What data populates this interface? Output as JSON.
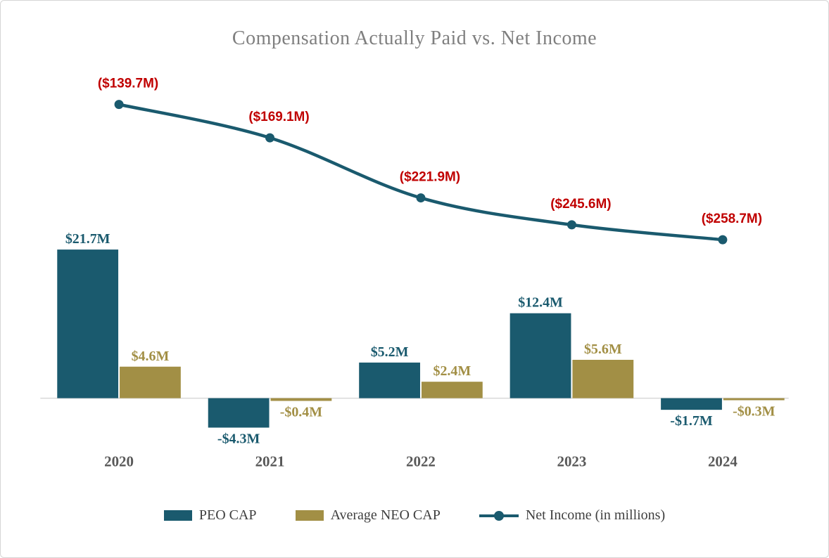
{
  "chart_data": {
    "type": "combo-bar-line",
    "title": "Compensation Actually Paid vs. Net Income",
    "categories": [
      "2020",
      "2021",
      "2022",
      "2023",
      "2024"
    ],
    "series": [
      {
        "name": "PEO CAP",
        "type": "bar",
        "color": "#1a5a6e",
        "values": [
          21.7,
          -4.3,
          5.2,
          12.4,
          -1.7
        ],
        "labels": [
          "$21.7M",
          "-$4.3M",
          "$5.2M",
          "$12.4M",
          "-$1.7M"
        ]
      },
      {
        "name": "Average NEO CAP",
        "type": "bar",
        "color": "#a28f45",
        "values": [
          4.6,
          -0.4,
          2.4,
          5.6,
          -0.3
        ],
        "labels": [
          "$4.6M",
          "-$0.4M",
          "$2.4M",
          "$5.6M",
          "-$0.3M"
        ]
      },
      {
        "name": "Net Income (in millions)",
        "type": "line",
        "color": "#1a5a6e",
        "label_color": "#c00000",
        "values": [
          -139.7,
          -169.1,
          -221.9,
          -245.6,
          -258.7
        ],
        "labels": [
          "($139.7M)",
          "($169.1M)",
          "($221.9M)",
          "($245.6M)",
          "($258.7M)"
        ]
      }
    ],
    "axis": {
      "baseline_visible": true,
      "gridlines": false,
      "y_axis_visible": false,
      "bar_value_unit": "millions USD",
      "legend_position": "bottom"
    },
    "colors": {
      "title_gray": "#7f7f7f",
      "axis_tick_gray": "#595959",
      "baseline_gray": "#d9d9d9",
      "negative_net_income_red": "#c00000"
    }
  }
}
